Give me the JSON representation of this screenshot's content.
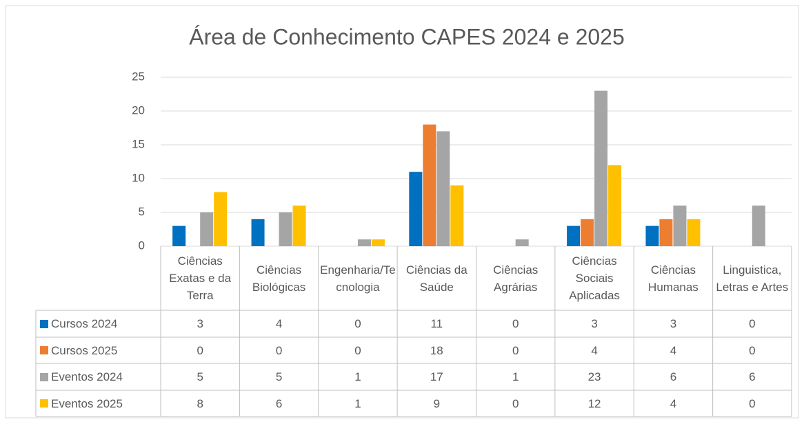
{
  "chart_data": {
    "type": "bar",
    "title": "Área de Conhecimento CAPES 2024 e 2025",
    "categories": [
      "Ciências Exatas e da Terra",
      "Ciências Biológicas",
      "Engenharia/Tecnologia",
      "Ciências da Saúde",
      "Ciências Agrárias",
      "Ciências Sociais Aplicadas",
      "Ciências Humanas",
      "Linguistica, Letras e Artes"
    ],
    "series": [
      {
        "name": "Cursos 2024",
        "color": "#0070c0",
        "values": [
          3,
          4,
          0,
          11,
          0,
          3,
          3,
          0
        ]
      },
      {
        "name": "Cursos 2025",
        "color": "#ed7d31",
        "values": [
          0,
          0,
          0,
          18,
          0,
          4,
          4,
          0
        ]
      },
      {
        "name": "Eventos 2024",
        "color": "#a5a5a5",
        "values": [
          5,
          5,
          1,
          17,
          1,
          23,
          6,
          6
        ]
      },
      {
        "name": "Eventos 2025",
        "color": "#ffc000",
        "values": [
          8,
          6,
          1,
          9,
          0,
          12,
          4,
          0
        ]
      }
    ],
    "ylim": [
      0,
      25
    ],
    "yticks": [
      0,
      5,
      10,
      15,
      20,
      25
    ],
    "grid": true,
    "data_table": true
  }
}
